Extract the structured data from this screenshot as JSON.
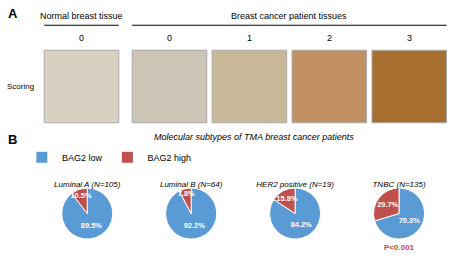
{
  "title": "Molecular subtypes of TMA breast cancer patients",
  "annotations": [
    "B"
  ],
  "chart_data": [
    {
      "type": "swatches",
      "categories": [
        "0",
        "0",
        "1",
        "2",
        "3"
      ],
      "colors": [
        "#d8d0c0",
        "#ccc4b4",
        "#c8b898",
        "#c09060",
        "#a87030"
      ],
      "annotations": [
        "A",
        "Scoring",
        "Normal breast tissue",
        "Breast cancer patient tissues"
      ]
    },
    {
      "type": "pie",
      "title": "Luminal A (N=105)",
      "categories": [
        "BAG2 low",
        "BAG2 high"
      ],
      "values": [
        89.5,
        10.5
      ],
      "value_labels": [
        "89.5%",
        "10.5%"
      ],
      "data_labels": true,
      "colors": [
        "#5B9BD5",
        "#C0504D"
      ],
      "legend": "upper left"
    },
    {
      "type": "pie",
      "title": "Luminal B (N=64)",
      "categories": [
        "BAG2 low",
        "BAG2 high"
      ],
      "values": [
        92.2,
        7.8
      ],
      "value_labels": [
        "92.2%",
        "7.8%"
      ],
      "data_labels": true,
      "colors": [
        "#5B9BD5",
        "#C0504D"
      ],
      "legend": "upper left"
    },
    {
      "type": "pie",
      "title": "HER2 positive (N=19)",
      "categories": [
        "BAG2 low",
        "BAG2 high"
      ],
      "values": [
        84.2,
        15.8
      ],
      "value_labels": [
        "84.2%",
        "15.8%"
      ],
      "data_labels": true,
      "colors": [
        "#5B9BD5",
        "#C0504D"
      ],
      "legend": "upper left"
    },
    {
      "type": "pie",
      "title": "TNBC (N=135)",
      "categories": [
        "BAG2 low",
        "BAG2 high"
      ],
      "values": [
        70.3,
        29.7
      ],
      "value_labels": [
        "70.3%",
        "29.7%"
      ],
      "data_labels": true,
      "colors": [
        "#5B9BD5",
        "#C0504D"
      ],
      "legend": "upper left",
      "annotations": [
        "P<0.001"
      ]
    }
  ]
}
